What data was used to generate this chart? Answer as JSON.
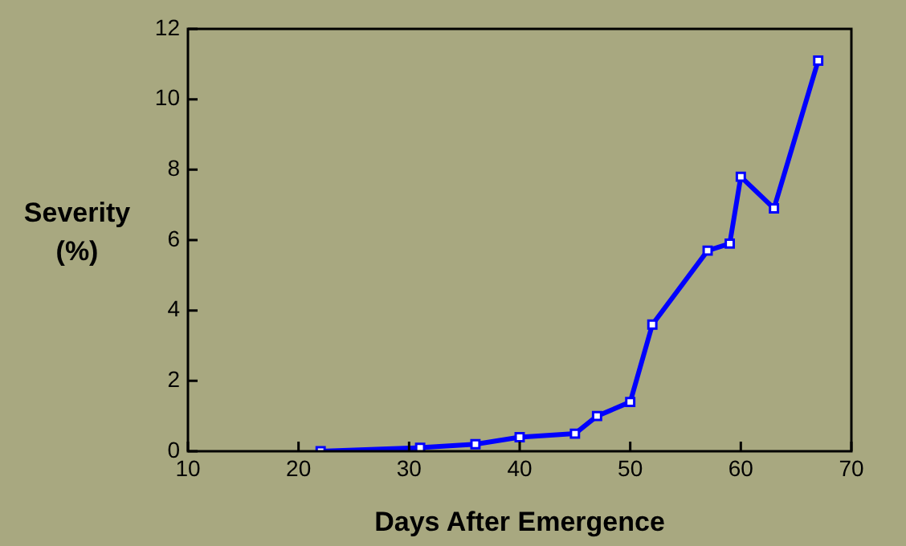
{
  "chart_data": {
    "type": "line",
    "xlabel": "Days After Emergence",
    "ylabel": "Severity\n(%)",
    "x": [
      22,
      31,
      36,
      40,
      45,
      47,
      50,
      52,
      57,
      59,
      60,
      63,
      67
    ],
    "series": [
      {
        "color": "#0000ff",
        "values": [
          0.0,
          0.1,
          0.2,
          0.4,
          0.5,
          1.0,
          1.4,
          3.6,
          5.7,
          5.9,
          7.8,
          6.9,
          11.1
        ]
      }
    ],
    "xlim": [
      10,
      70
    ],
    "xticks": [
      10,
      20,
      30,
      40,
      50,
      60,
      70
    ],
    "ylim": [
      0,
      12
    ],
    "yticks": [
      0,
      2,
      4,
      6,
      8,
      10,
      12
    ],
    "grid": false,
    "legend": false,
    "marker": "square",
    "line_style": "solid"
  }
}
